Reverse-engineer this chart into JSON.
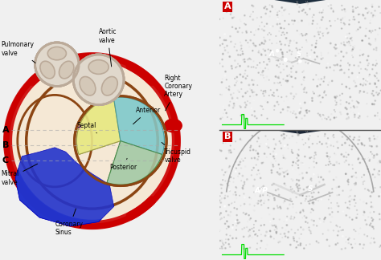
{
  "bg_color": "#f0f0f0",
  "diagram_bg": "#ffffff",
  "echo_bg": "#000000",
  "labels": {
    "pulmonary_valve": "Pulmonary\nvalve",
    "aortic_valve": "Aortic\nvalve",
    "right_coronary": "Right\nCoronary\nArtery",
    "tricuspid_valve": "Tricuspid\nvalve",
    "anterior": "Anterior",
    "septal": "Septal",
    "posterior": "Posterior",
    "mitral_valve": "Mitral\nvalve",
    "coronary_sinus": "Coronary\nSinus",
    "A": "A",
    "B": "B",
    "C": "C"
  },
  "colors": {
    "red_vessel": "#cc0000",
    "brown_ring": "#8B4513",
    "yellow_septal": "#e8e888",
    "cyan_anterior": "#88cccc",
    "green_posterior": "#aaccaa",
    "blue_mitral": "#2233cc",
    "blue_coronary": "#3344dd",
    "gray_valve": "#bbaa99",
    "heart_fill": "#f5e8d5",
    "dashed_line": "#aaaaaa"
  }
}
